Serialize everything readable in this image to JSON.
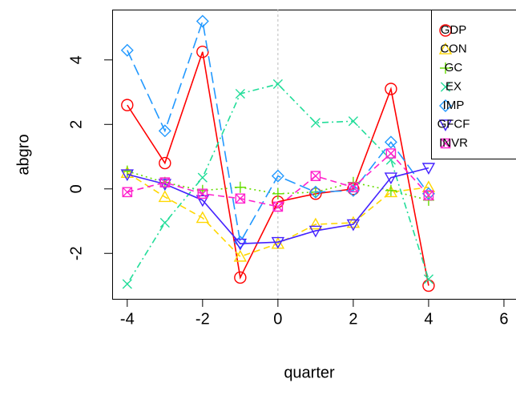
{
  "chart_data": {
    "type": "line",
    "x_label": "quarter",
    "y_label": "abgro",
    "x": [
      -4,
      -3,
      -2,
      -1,
      0,
      1,
      2,
      3,
      4
    ],
    "xlim": [
      -4.4,
      6.32
    ],
    "ylim": [
      -3.41,
      5.56
    ],
    "xticks": [
      -4,
      -2,
      0,
      2,
      4,
      6
    ],
    "yticks": [
      -2,
      0,
      2,
      4
    ],
    "vline": 0,
    "legend": "top-right",
    "series": [
      {
        "name": "GDP",
        "color": "#ff0000",
        "marker": "circle",
        "dash": "solid",
        "values": [
          2.6,
          0.8,
          4.25,
          -2.75,
          -0.4,
          -0.15,
          0.0,
          3.1,
          -3.0
        ]
      },
      {
        "name": "CON",
        "color": "#ffd700",
        "marker": "triangle",
        "dash": "dashed",
        "values": [
          0.5,
          -0.25,
          -0.9,
          -2.1,
          -1.7,
          -1.1,
          -1.05,
          -0.1,
          0.05
        ]
      },
      {
        "name": "GC",
        "color": "#66dd00",
        "marker": "plus",
        "dash": "dotted",
        "values": [
          0.55,
          0.2,
          -0.05,
          0.05,
          -0.15,
          -0.1,
          0.2,
          -0.05,
          -0.35
        ]
      },
      {
        "name": "EX",
        "color": "#22dd99",
        "marker": "cross",
        "dash": "dotdash",
        "values": [
          -2.95,
          -1.05,
          0.35,
          2.95,
          3.25,
          2.05,
          2.1,
          0.9,
          -2.8
        ]
      },
      {
        "name": "IMP",
        "color": "#2299ff",
        "marker": "diamond",
        "dash": "longdash",
        "values": [
          4.3,
          1.8,
          5.2,
          -1.65,
          0.4,
          -0.1,
          -0.05,
          1.45,
          -0.15
        ]
      },
      {
        "name": "GFCF",
        "color": "#4422ff",
        "marker": "downtriangle",
        "dash": "solid",
        "values": [
          0.45,
          0.15,
          -0.35,
          -1.7,
          -1.65,
          -1.3,
          -1.1,
          0.35,
          0.65
        ]
      },
      {
        "name": "INVR",
        "color": "#ff22cc",
        "marker": "boxcross",
        "dash": "dashed",
        "values": [
          -0.1,
          0.2,
          -0.15,
          -0.3,
          -0.55,
          0.4,
          0.05,
          1.1,
          -0.2
        ]
      }
    ]
  }
}
